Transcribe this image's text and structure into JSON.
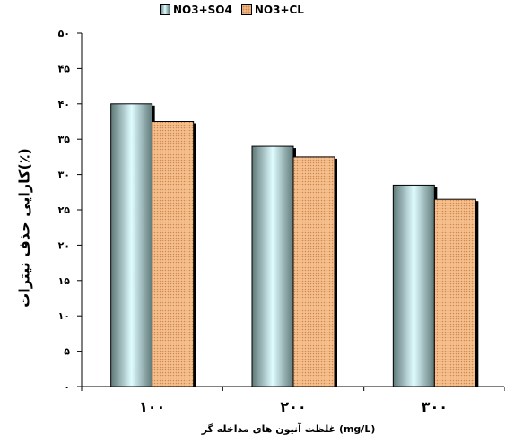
{
  "chart_data": {
    "type": "bar",
    "categories": [
      "۱۰۰",
      "۲۰۰",
      "۳۰۰"
    ],
    "series": [
      {
        "name": "NO3+SO4",
        "values": [
          40,
          34,
          28.5
        ]
      },
      {
        "name": "NO3+CL",
        "values": [
          37.5,
          32.5,
          26.5
        ]
      }
    ],
    "y_ticks": [
      "۰",
      "۵",
      "۱۰",
      "۱۵",
      "۲۰",
      "۲۵",
      "۳۰",
      "۳۵",
      "۴۰",
      "۴۵",
      "۵۰"
    ],
    "ylim": [
      0,
      50
    ],
    "xlabel": "غلظت آنیون های مداخله گر (mg/L)",
    "ylabel": "کارایی حذف نیترات(٪)",
    "legend_position": "top",
    "grid": false,
    "colors": {
      "series1": "#5f7878",
      "series1_highlight": "#dffcff",
      "series2": "#f6c08e",
      "series2_dots": "#d08a50"
    }
  }
}
